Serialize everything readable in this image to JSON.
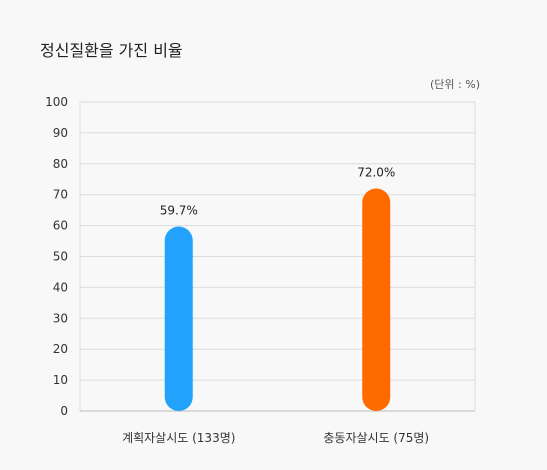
{
  "title": "정신질환을 가진 비율",
  "unit": "(단위 : %)",
  "chart_data": {
    "type": "bar",
    "title": "정신질환을 가진 비율",
    "categories": [
      "계획자살시도 (133명)",
      "충동자살시도 (75명)"
    ],
    "values": [
      59.7,
      72.0
    ],
    "value_labels": [
      "59.7%",
      "72.0%"
    ],
    "colors": [
      "#22a2fa",
      "#ff6a00"
    ],
    "ylim": [
      0,
      100
    ],
    "yticks": [
      0,
      10,
      20,
      30,
      40,
      50,
      60,
      70,
      80,
      90,
      100
    ],
    "grid": true,
    "legend": "none"
  }
}
